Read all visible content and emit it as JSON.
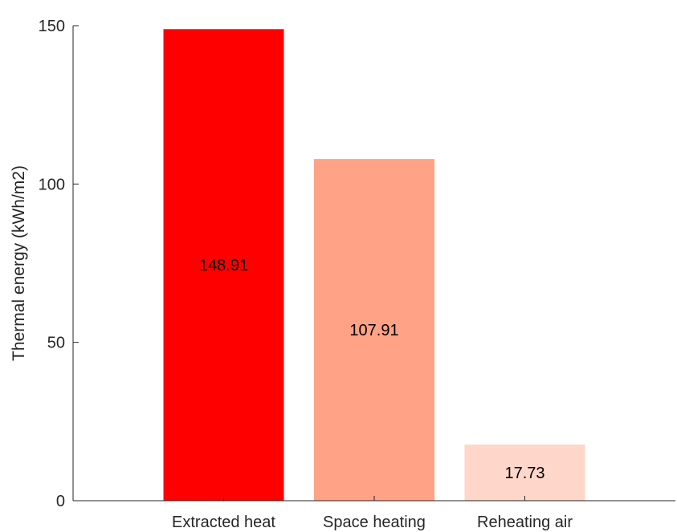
{
  "chart_data": {
    "type": "bar",
    "categories": [
      "Extracted heat",
      "Space heating",
      "Reheating air"
    ],
    "values": [
      148.91,
      107.91,
      17.73
    ],
    "data_labels": [
      "148.91",
      "107.91",
      "17.73"
    ],
    "colors": [
      "#ff0000",
      "#ffa286",
      "#ffd6ca"
    ],
    "title": "",
    "xlabel": "",
    "ylabel": "Thermal energy (kWh/m2)",
    "ylim": [
      0,
      150
    ],
    "yticks": [
      0,
      50,
      100,
      150
    ],
    "ytick_labels": [
      "0",
      "50",
      "100",
      "150"
    ],
    "grid": false,
    "legend": "none"
  }
}
